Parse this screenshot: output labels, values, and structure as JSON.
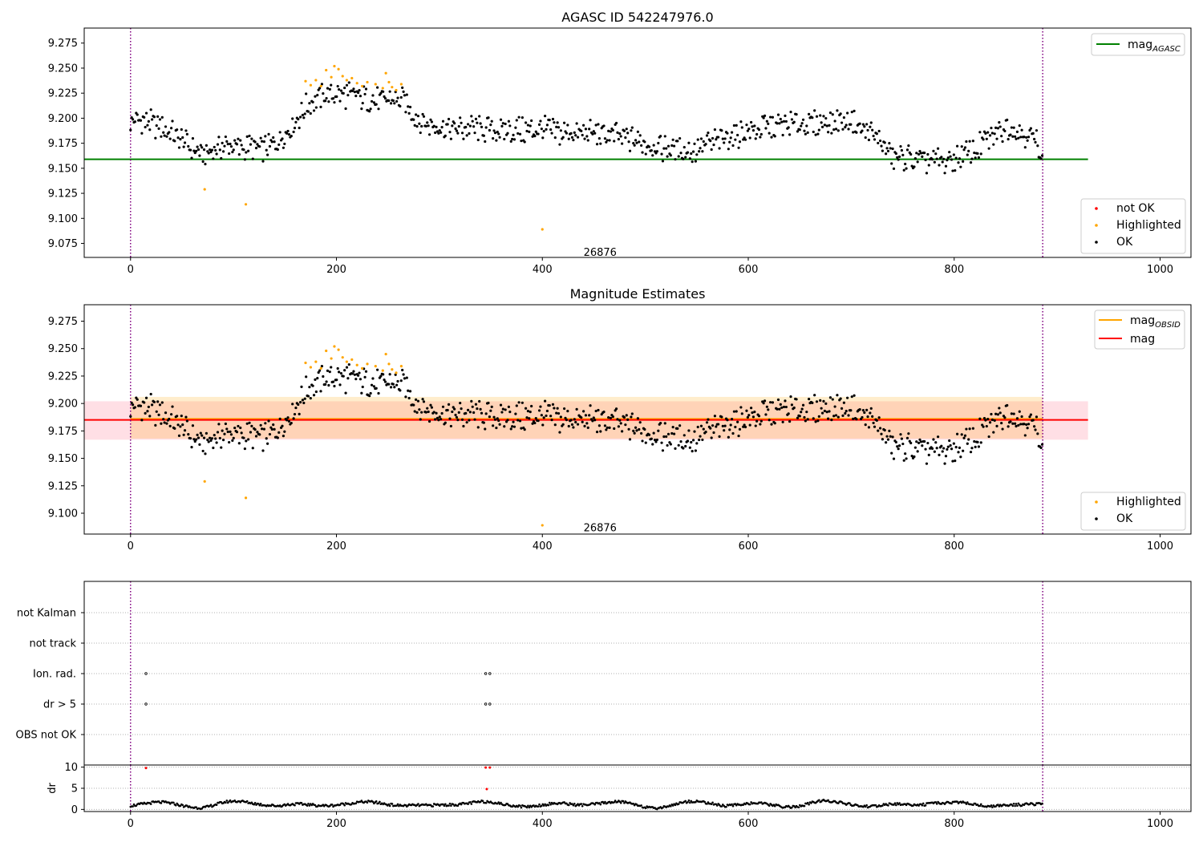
{
  "figure": {
    "title": "AGASC ID 542247976.0"
  },
  "chart_data": [
    {
      "type": "scatter",
      "title": "AGASC ID 542247976.0",
      "xlim": [
        -45,
        1030
      ],
      "ylim": [
        9.061,
        9.29
      ],
      "x_ticks": [
        0,
        200,
        400,
        600,
        800,
        1000
      ],
      "y_ticks": [
        9.075,
        9.1,
        9.125,
        9.15,
        9.175,
        9.2,
        9.225,
        9.25,
        9.275
      ],
      "y_tick_labels": [
        "9.075",
        "9.100",
        "9.125",
        "9.150",
        "9.175",
        "9.200",
        "9.225",
        "9.250",
        "9.275"
      ],
      "vlines": [
        0,
        886
      ],
      "hline": {
        "name": "mag_AGASC",
        "value": 9.159,
        "x_range": [
          -45,
          930
        ],
        "color": "#008000"
      },
      "annotation": {
        "text": "26876",
        "x": 440,
        "y": 9.066
      },
      "legend_lines": [
        {
          "base": "mag",
          "sub": "AGASC",
          "color": "#008000"
        }
      ],
      "legend_points": [
        {
          "label": "not OK",
          "color": "#ff0000"
        },
        {
          "label": "Highlighted",
          "color": "#ffa500"
        },
        {
          "label": "OK",
          "color": "#000000"
        }
      ],
      "series": [
        {
          "name": "Highlighted",
          "color": "#ffa500",
          "points": [
            [
              72,
              9.129
            ],
            [
              112,
              9.114
            ],
            [
              400,
              9.089
            ],
            [
              170,
              9.237
            ],
            [
              175,
              9.233
            ],
            [
              180,
              9.238
            ],
            [
              185,
              9.232
            ],
            [
              190,
              9.248
            ],
            [
              195,
              9.241
            ],
            [
              198,
              9.252
            ],
            [
              202,
              9.249
            ],
            [
              206,
              9.242
            ],
            [
              210,
              9.238
            ],
            [
              215,
              9.24
            ],
            [
              220,
              9.235
            ],
            [
              225,
              9.232
            ],
            [
              230,
              9.236
            ],
            [
              238,
              9.234
            ],
            [
              245,
              9.23
            ],
            [
              248,
              9.245
            ],
            [
              251,
              9.236
            ],
            [
              254,
              9.231
            ],
            [
              258,
              9.228
            ],
            [
              263,
              9.234
            ]
          ]
        }
      ],
      "ok_series": {
        "name": "OK",
        "color": "#000000",
        "x_start": 0,
        "x_end": 886,
        "step": 1.1
      }
    },
    {
      "type": "scatter",
      "title": "Magnitude Estimates",
      "xlim": [
        -45,
        1030
      ],
      "ylim": [
        9.081,
        9.29
      ],
      "x_ticks": [
        0,
        200,
        400,
        600,
        800,
        1000
      ],
      "y_ticks": [
        9.1,
        9.125,
        9.15,
        9.175,
        9.2,
        9.225,
        9.25,
        9.275
      ],
      "y_tick_labels": [
        "9.100",
        "9.125",
        "9.150",
        "9.175",
        "9.200",
        "9.225",
        "9.250",
        "9.275"
      ],
      "vlines": [
        0,
        886
      ],
      "bands": [
        {
          "name": "mag",
          "from": 9.167,
          "to": 9.202,
          "x_range": [
            -45,
            930
          ],
          "color": "#ffc0cb",
          "opacity": 0.5
        },
        {
          "name": "mag_OBSID",
          "from": 9.168,
          "to": 9.206,
          "x_range": [
            0,
            886
          ],
          "color": "#ffa500",
          "opacity": 0.2
        }
      ],
      "hlines": [
        {
          "name": "mag_OBSID",
          "value": 9.186,
          "x_range": [
            0,
            886
          ],
          "color": "#ffa500"
        },
        {
          "name": "mag",
          "value": 9.185,
          "x_range": [
            -45,
            930
          ],
          "color": "#ff0000"
        }
      ],
      "annotation": {
        "text": "26876",
        "x": 440,
        "y": 9.0865
      },
      "legend_lines": [
        {
          "base": "mag",
          "sub": "OBSID",
          "color": "#ffa500"
        },
        {
          "base": "mag",
          "sub": "",
          "color": "#ff0000"
        }
      ],
      "legend_points": [
        {
          "label": "Highlighted",
          "color": "#ffa500"
        },
        {
          "label": "OK",
          "color": "#000000"
        }
      ],
      "series": [
        {
          "name": "Highlighted",
          "color": "#ffa500",
          "points": [
            [
              72,
              9.129
            ],
            [
              112,
              9.114
            ],
            [
              400,
              9.089
            ],
            [
              170,
              9.237
            ],
            [
              175,
              9.233
            ],
            [
              180,
              9.238
            ],
            [
              185,
              9.232
            ],
            [
              190,
              9.248
            ],
            [
              195,
              9.241
            ],
            [
              198,
              9.252
            ],
            [
              202,
              9.249
            ],
            [
              206,
              9.242
            ],
            [
              210,
              9.238
            ],
            [
              215,
              9.24
            ],
            [
              220,
              9.235
            ],
            [
              225,
              9.232
            ],
            [
              230,
              9.236
            ],
            [
              238,
              9.234
            ],
            [
              245,
              9.23
            ],
            [
              248,
              9.245
            ],
            [
              251,
              9.236
            ],
            [
              254,
              9.231
            ],
            [
              258,
              9.228
            ],
            [
              263,
              9.234
            ]
          ]
        }
      ],
      "ok_series": {
        "name": "OK",
        "color": "#000000",
        "x_start": 0,
        "x_end": 886,
        "step": 1.1
      }
    },
    {
      "type": "scatter",
      "title": "",
      "xlim": [
        -45,
        1030
      ],
      "categories": [
        "OBS not OK",
        "dr > 5",
        "Ion. rad.",
        "not track",
        "not Kalman"
      ],
      "vlines": [
        0,
        886
      ],
      "flag_points": [
        {
          "category": "dr > 5",
          "x": [
            15,
            345,
            349
          ]
        },
        {
          "category": "Ion. rad.",
          "x": [
            15,
            345,
            349
          ]
        }
      ]
    },
    {
      "type": "scatter",
      "title": "",
      "xlim": [
        -45,
        1030
      ],
      "ylim": [
        -0.5,
        10.5
      ],
      "x_ticks": [
        0,
        200,
        400,
        600,
        800,
        1000
      ],
      "y_ticks": [
        0,
        5,
        10
      ],
      "y_tick_labels": [
        "0",
        "5",
        "10"
      ],
      "ylabel": "dr",
      "vlines": [
        0,
        886
      ],
      "outliers": {
        "color": "#ff0000",
        "points": [
          [
            15,
            9.8
          ],
          [
            345,
            9.9
          ],
          [
            349,
            9.9
          ],
          [
            346,
            4.8
          ]
        ]
      },
      "dr_series": {
        "name": "dr",
        "color": "#000000",
        "x_start": 0,
        "x_end": 886,
        "step": 1.1
      }
    }
  ]
}
